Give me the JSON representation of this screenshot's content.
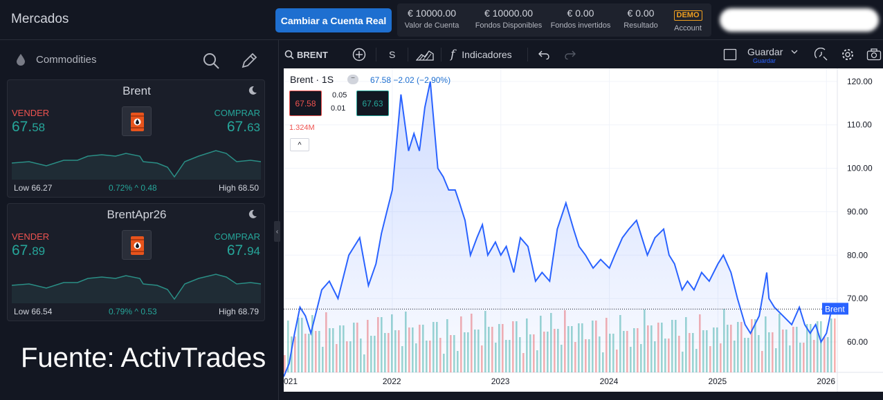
{
  "app": {
    "title": "Mercados"
  },
  "header": {
    "real_button": "Cambiar a Cuenta Real",
    "stats": [
      {
        "value": "€ 10000.00",
        "label": "Valor de Cuenta"
      },
      {
        "value": "€ 10000.00",
        "label": "Fondos Disponibles"
      },
      {
        "value": "€ 0.00",
        "label": "Fondos invertidos"
      },
      {
        "value": "€ 0.00",
        "label": "Resultado"
      }
    ],
    "demo_badge": "DEMO",
    "account_label": "Account"
  },
  "sidebar": {
    "category": "Commodities",
    "cards": [
      {
        "name": "Brent",
        "sell_label": "VENDER",
        "sell_main": "67.",
        "sell_small": "58",
        "buy_label": "COMPRAR",
        "buy_main": "67.",
        "buy_small": "63",
        "low": "Low 66.27",
        "change_pct": "0.72%",
        "change_abs": "0.48",
        "high": "High 68.50"
      },
      {
        "name": "BrentApr26",
        "sell_label": "VENDER",
        "sell_main": "67.",
        "sell_small": "89",
        "buy_label": "COMPRAR",
        "buy_main": "67.",
        "buy_small": "94",
        "low": "Low 66.54",
        "change_pct": "0.79%",
        "change_abs": "0.53",
        "high": "High 68.79"
      }
    ],
    "source_text": "Fuente: ActivTrades"
  },
  "toolbar": {
    "symbol": "BRENT",
    "interval": "S",
    "indicators": "Indicadores",
    "save": "Guardar",
    "save_sub": "Guardar"
  },
  "legend": {
    "title": "Brent · 1S",
    "quote": "67.58 −2.02 (−2.90%)",
    "bid": "67.58",
    "ask": "67.63",
    "spread_top": "0.05",
    "spread_bottom": "0.01",
    "volume": "1.324M",
    "tag": "Brent"
  },
  "colors": {
    "line": "#2962ff",
    "up_volume": "#26a69a",
    "down_volume": "#ef5350",
    "accent": "#1e6fd0"
  },
  "chart_data": {
    "type": "area",
    "series": [
      {
        "name": "Brent",
        "x": [
          2021.0,
          2021.05,
          2021.1,
          2021.15,
          2021.2,
          2021.25,
          2021.3,
          2021.35,
          2021.42,
          2021.5,
          2021.6,
          2021.7,
          2021.78,
          2021.85,
          2021.9,
          2021.95,
          2022.0,
          2022.08,
          2022.15,
          2022.2,
          2022.25,
          2022.3,
          2022.35,
          2022.42,
          2022.47,
          2022.52,
          2022.58,
          2022.62,
          2022.67,
          2022.72,
          2022.78,
          2022.83,
          2022.88,
          2022.95,
          2023.0,
          2023.05,
          2023.12,
          2023.18,
          2023.25,
          2023.32,
          2023.38,
          2023.45,
          2023.52,
          2023.6,
          2023.67,
          2023.72,
          2023.78,
          2023.85,
          2023.92,
          2024.0,
          2024.05,
          2024.12,
          2024.18,
          2024.25,
          2024.3,
          2024.35,
          2024.42,
          2024.5,
          2024.55,
          2024.6,
          2024.67,
          2024.72,
          2024.78,
          2024.85,
          2024.92,
          2025.0,
          2025.05,
          2025.12,
          2025.18,
          2025.25,
          2025.3,
          2025.38,
          2025.45,
          2025.47,
          2025.52,
          2025.6,
          2025.68,
          2025.75,
          2025.8,
          2025.85,
          2025.9,
          2025.95,
          2026.0,
          2026.05
        ],
        "values": [
          52,
          55,
          62,
          68,
          66,
          62,
          67,
          72,
          74,
          70,
          80,
          84,
          73,
          78,
          85,
          90,
          95,
          117,
          104,
          108,
          104,
          114,
          120,
          100,
          98,
          95,
          95,
          92,
          88,
          80,
          84,
          87,
          80,
          83,
          80,
          82,
          76,
          84,
          82,
          74,
          76,
          74,
          86,
          92,
          86,
          82,
          80,
          77,
          79,
          77,
          80,
          84,
          86,
          88,
          84,
          80,
          84,
          86,
          80,
          78,
          72,
          74,
          72,
          76,
          74,
          78,
          80,
          76,
          70,
          64,
          62,
          66,
          76,
          70,
          68,
          66,
          64,
          68,
          64,
          62,
          64,
          60,
          62,
          68
        ]
      }
    ],
    "volume_note": "weekly volume bars beneath price",
    "xlabels": [
      "021",
      "2022",
      "2023",
      "2024",
      "2025",
      "2026"
    ],
    "xtick_positions": [
      2021.0,
      2022.0,
      2023.0,
      2024.0,
      2025.0,
      2026.0
    ],
    "yticks": [
      60,
      70,
      80,
      90,
      100,
      110,
      120
    ],
    "ytick_labels": [
      "60.00",
      "70.00",
      "80.00",
      "90.00",
      "100.00",
      "110.00",
      "120.00"
    ],
    "ylim": [
      53,
      123
    ],
    "xlim": [
      2021.0,
      2026.1
    ],
    "last_price": 67.58,
    "grid": true
  }
}
